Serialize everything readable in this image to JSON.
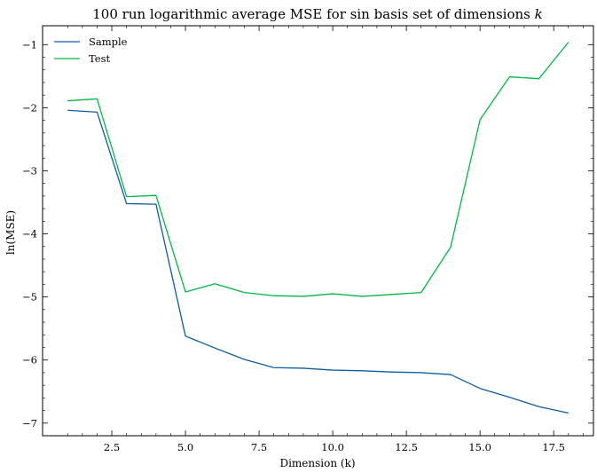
{
  "chart_data": {
    "type": "line",
    "title": "100 run logarithmic average MSE for sin basis set of dimensions",
    "title_var": "k",
    "xlabel": "Dimension (k)",
    "ylabel": "ln(MSE)",
    "xlim": [
      0.15,
      18.85
    ],
    "ylim": [
      -7.2,
      -0.7
    ],
    "xticks": [
      2.5,
      5.0,
      7.5,
      10.0,
      12.5,
      15.0,
      17.5
    ],
    "xtick_labels": [
      "2.5",
      "5.0",
      "7.5",
      "10.0",
      "12.5",
      "15.0",
      "17.5"
    ],
    "yticks": [
      -1,
      -2,
      -3,
      -4,
      -5,
      -6,
      -7
    ],
    "ytick_labels": [
      "−1",
      "−2",
      "−3",
      "−4",
      "−5",
      "−6",
      "−7"
    ],
    "grid": false,
    "legend_position": "top-left",
    "x": [
      1,
      2,
      3,
      4,
      5,
      6,
      7,
      8,
      9,
      10,
      11,
      12,
      13,
      14,
      15,
      16,
      17,
      18
    ],
    "series": [
      {
        "name": "Sample",
        "color": "#0c5da5",
        "values": [
          -2.04,
          -2.07,
          -3.52,
          -3.53,
          -5.62,
          -5.81,
          -5.99,
          -6.12,
          -6.13,
          -6.16,
          -6.17,
          -6.19,
          -6.2,
          -6.23,
          -6.45,
          -6.59,
          -6.74,
          -6.84
        ]
      },
      {
        "name": "Test",
        "color": "#00b945",
        "values": [
          -1.89,
          -1.86,
          -3.41,
          -3.39,
          -4.92,
          -4.79,
          -4.93,
          -4.98,
          -4.99,
          -4.95,
          -4.99,
          -4.96,
          -4.93,
          -4.21,
          -2.19,
          -1.51,
          -1.54,
          -0.96
        ]
      }
    ]
  }
}
